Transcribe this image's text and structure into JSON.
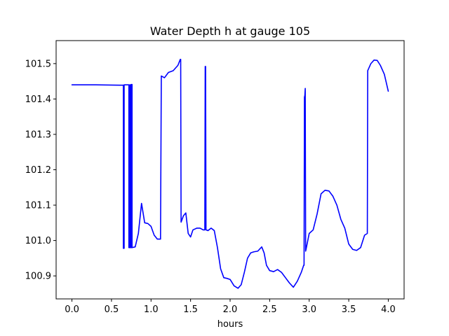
{
  "chart_data": {
    "type": "line",
    "title": "Water Depth h at gauge 105",
    "xlabel": "hours",
    "ylabel": "",
    "xlim": [
      -0.2,
      4.2
    ],
    "ylim": [
      100.835,
      101.565
    ],
    "grid": false,
    "x_ticks": [
      0.0,
      0.5,
      1.0,
      1.5,
      2.0,
      2.5,
      3.0,
      3.5,
      4.0
    ],
    "x_tick_labels": [
      "0.0",
      "0.5",
      "1.0",
      "1.5",
      "2.0",
      "2.5",
      "3.0",
      "3.5",
      "4.0"
    ],
    "y_ticks": [
      100.9,
      101.0,
      101.1,
      101.2,
      101.3,
      101.4,
      101.5
    ],
    "y_tick_labels": [
      "100.9",
      "101.0",
      "101.1",
      "101.2",
      "101.3",
      "101.4",
      "101.5"
    ],
    "series": [
      {
        "color": "#0000ff",
        "x": [
          0.0,
          0.3,
          0.6,
          0.65,
          0.65,
          0.66,
          0.66,
          0.72,
          0.72,
          0.73,
          0.73,
          0.74,
          0.74,
          0.75,
          0.75,
          0.76,
          0.76,
          0.8,
          0.84,
          0.88,
          0.92,
          0.96,
          1.0,
          1.04,
          1.08,
          1.12,
          1.13,
          1.17,
          1.22,
          1.28,
          1.34,
          1.37,
          1.375,
          1.38,
          1.41,
          1.44,
          1.47,
          1.5,
          1.53,
          1.58,
          1.62,
          1.66,
          1.68,
          1.685,
          1.69,
          1.695,
          1.72,
          1.76,
          1.8,
          1.84,
          1.88,
          1.92,
          1.96,
          2.0,
          2.05,
          2.1,
          2.14,
          2.18,
          2.22,
          2.26,
          2.3,
          2.35,
          2.4,
          2.43,
          2.46,
          2.5,
          2.55,
          2.6,
          2.65,
          2.7,
          2.75,
          2.8,
          2.85,
          2.9,
          2.93,
          2.935,
          2.94,
          2.945,
          2.95,
          2.955,
          2.96,
          3.0,
          3.05,
          3.1,
          3.15,
          3.2,
          3.25,
          3.3,
          3.35,
          3.4,
          3.45,
          3.5,
          3.55,
          3.6,
          3.65,
          3.7,
          3.735,
          3.74,
          3.78,
          3.82,
          3.86,
          3.9,
          3.95,
          4.0
        ],
        "values": [
          101.44,
          101.44,
          101.439,
          101.439,
          100.978,
          100.978,
          101.44,
          101.44,
          100.98,
          100.98,
          101.44,
          101.44,
          100.98,
          100.98,
          101.441,
          101.441,
          100.98,
          100.982,
          101.02,
          101.105,
          101.05,
          101.048,
          101.04,
          101.015,
          101.004,
          101.004,
          101.465,
          101.46,
          101.475,
          101.48,
          101.495,
          101.512,
          101.512,
          101.052,
          101.07,
          101.078,
          101.02,
          101.01,
          101.03,
          101.035,
          101.035,
          101.03,
          101.03,
          101.492,
          101.492,
          101.03,
          101.028,
          101.035,
          101.028,
          100.98,
          100.92,
          100.895,
          100.893,
          100.89,
          100.872,
          100.865,
          100.875,
          100.91,
          100.95,
          100.965,
          100.968,
          100.97,
          100.982,
          100.965,
          100.93,
          100.915,
          100.912,
          100.918,
          100.91,
          100.895,
          100.88,
          100.868,
          100.885,
          100.91,
          100.93,
          100.93,
          101.405,
          101.41,
          101.43,
          100.97,
          100.975,
          101.02,
          101.03,
          101.075,
          101.132,
          101.142,
          101.14,
          101.125,
          101.1,
          101.06,
          101.035,
          100.99,
          100.975,
          100.972,
          100.98,
          101.015,
          101.02,
          101.48,
          101.5,
          101.51,
          101.509,
          101.495,
          101.47,
          101.422
        ]
      }
    ]
  }
}
